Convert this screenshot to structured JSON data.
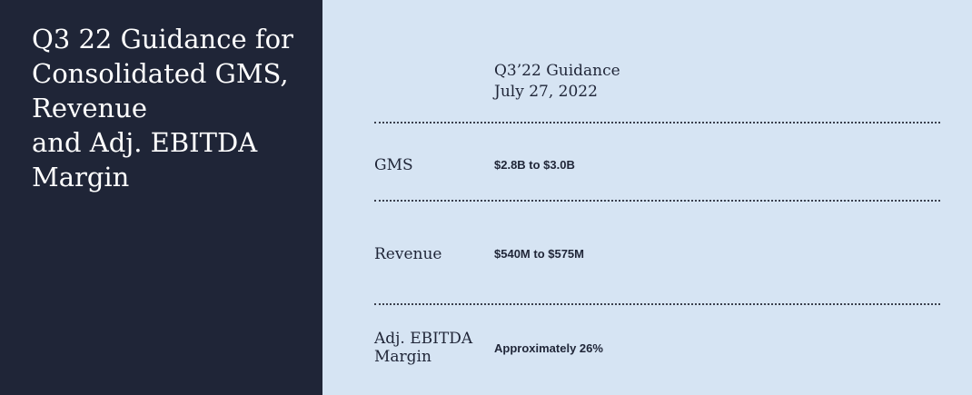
{
  "title_lines": [
    "Q3 22 Guidance for",
    "Consolidated GMS,",
    "Revenue",
    "and Adj. EBITDA",
    "Margin"
  ],
  "column_header": {
    "line1": "Q3’22 Guidance",
    "line2": "July 27, 2022"
  },
  "rows": [
    {
      "label_lines": [
        "GMS"
      ],
      "value": "$2.8B to $3.0B"
    },
    {
      "label_lines": [
        "Revenue"
      ],
      "value": "$540M to $575M"
    },
    {
      "label_lines": [
        "Adj. EBITDA",
        "Margin"
      ],
      "value": "Approximately 26%"
    }
  ]
}
